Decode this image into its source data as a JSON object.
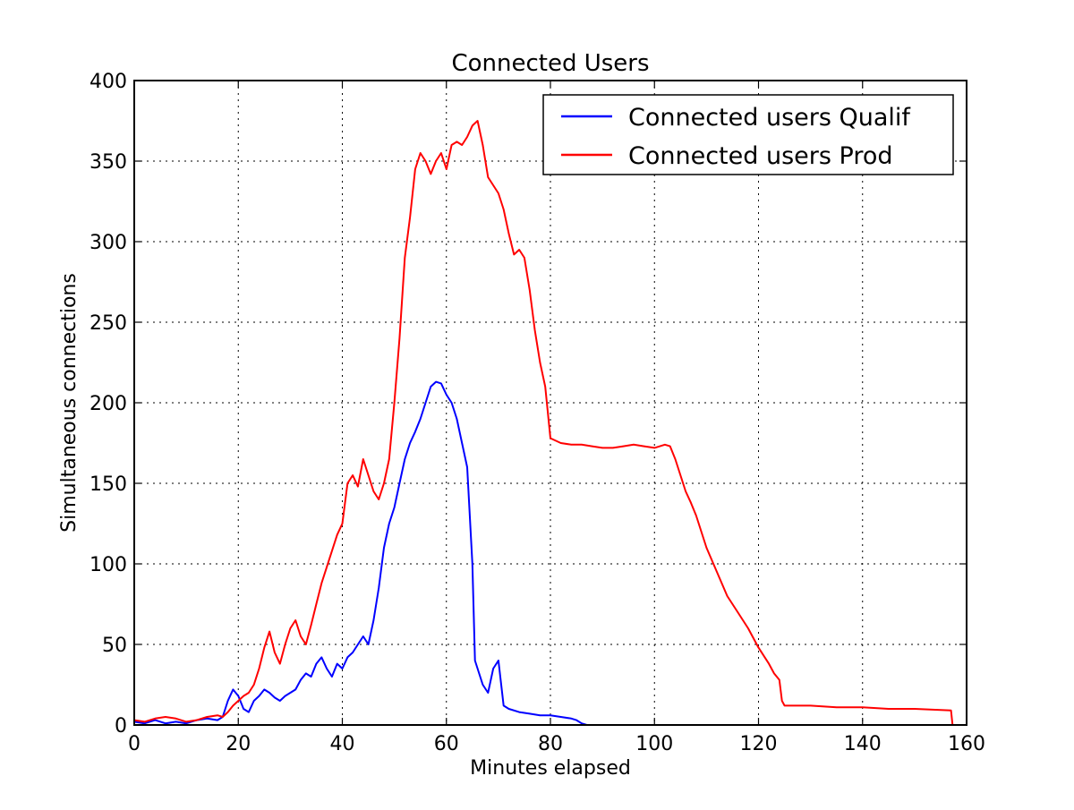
{
  "chart_data": {
    "type": "line",
    "title": "Connected Users",
    "xlabel": "Minutes elapsed",
    "ylabel": "Simultaneous connections",
    "xlim": [
      0,
      160
    ],
    "ylim": [
      0,
      400
    ],
    "xticks": [
      0,
      20,
      40,
      60,
      80,
      100,
      120,
      140,
      160
    ],
    "yticks": [
      0,
      50,
      100,
      150,
      200,
      250,
      300,
      350,
      400
    ],
    "grid": true,
    "legend_position": "top-right",
    "series": [
      {
        "name": "Connected users Qualif",
        "color": "#0000ff",
        "points": [
          [
            0,
            2
          ],
          [
            2,
            1
          ],
          [
            4,
            3
          ],
          [
            6,
            1
          ],
          [
            8,
            2
          ],
          [
            10,
            1
          ],
          [
            12,
            3
          ],
          [
            14,
            4
          ],
          [
            16,
            3
          ],
          [
            17,
            5
          ],
          [
            18,
            15
          ],
          [
            19,
            22
          ],
          [
            20,
            18
          ],
          [
            21,
            10
          ],
          [
            22,
            8
          ],
          [
            23,
            15
          ],
          [
            24,
            18
          ],
          [
            25,
            22
          ],
          [
            26,
            20
          ],
          [
            27,
            17
          ],
          [
            28,
            15
          ],
          [
            29,
            18
          ],
          [
            30,
            20
          ],
          [
            31,
            22
          ],
          [
            32,
            28
          ],
          [
            33,
            32
          ],
          [
            34,
            30
          ],
          [
            35,
            38
          ],
          [
            36,
            42
          ],
          [
            37,
            35
          ],
          [
            38,
            30
          ],
          [
            39,
            38
          ],
          [
            40,
            35
          ],
          [
            41,
            42
          ],
          [
            42,
            45
          ],
          [
            43,
            50
          ],
          [
            44,
            55
          ],
          [
            45,
            50
          ],
          [
            46,
            65
          ],
          [
            47,
            85
          ],
          [
            48,
            110
          ],
          [
            49,
            125
          ],
          [
            50,
            135
          ],
          [
            51,
            150
          ],
          [
            52,
            165
          ],
          [
            53,
            175
          ],
          [
            54,
            182
          ],
          [
            55,
            190
          ],
          [
            56,
            200
          ],
          [
            57,
            210
          ],
          [
            58,
            213
          ],
          [
            59,
            212
          ],
          [
            60,
            205
          ],
          [
            61,
            200
          ],
          [
            62,
            190
          ],
          [
            63,
            175
          ],
          [
            64,
            160
          ],
          [
            65,
            100
          ],
          [
            65.5,
            40
          ],
          [
            66,
            35
          ],
          [
            67,
            25
          ],
          [
            68,
            20
          ],
          [
            69,
            35
          ],
          [
            70,
            40
          ],
          [
            71,
            12
          ],
          [
            72,
            10
          ],
          [
            74,
            8
          ],
          [
            76,
            7
          ],
          [
            78,
            6
          ],
          [
            80,
            6
          ],
          [
            82,
            5
          ],
          [
            84,
            4
          ],
          [
            85,
            3
          ],
          [
            86,
            1
          ],
          [
            87,
            0
          ]
        ]
      },
      {
        "name": "Connected users Prod",
        "color": "#ff0000",
        "points": [
          [
            0,
            3
          ],
          [
            2,
            2
          ],
          [
            4,
            4
          ],
          [
            6,
            5
          ],
          [
            8,
            4
          ],
          [
            10,
            2
          ],
          [
            12,
            3
          ],
          [
            14,
            5
          ],
          [
            16,
            6
          ],
          [
            17,
            5
          ],
          [
            18,
            8
          ],
          [
            19,
            12
          ],
          [
            20,
            15
          ],
          [
            21,
            18
          ],
          [
            22,
            20
          ],
          [
            23,
            25
          ],
          [
            24,
            35
          ],
          [
            25,
            48
          ],
          [
            26,
            58
          ],
          [
            27,
            45
          ],
          [
            28,
            38
          ],
          [
            29,
            50
          ],
          [
            30,
            60
          ],
          [
            31,
            65
          ],
          [
            32,
            55
          ],
          [
            33,
            50
          ],
          [
            34,
            62
          ],
          [
            35,
            75
          ],
          [
            36,
            88
          ],
          [
            37,
            98
          ],
          [
            38,
            108
          ],
          [
            39,
            118
          ],
          [
            40,
            125
          ],
          [
            41,
            150
          ],
          [
            42,
            155
          ],
          [
            43,
            148
          ],
          [
            44,
            165
          ],
          [
            45,
            155
          ],
          [
            46,
            145
          ],
          [
            47,
            140
          ],
          [
            48,
            150
          ],
          [
            49,
            165
          ],
          [
            50,
            200
          ],
          [
            51,
            240
          ],
          [
            52,
            290
          ],
          [
            53,
            315
          ],
          [
            54,
            345
          ],
          [
            55,
            355
          ],
          [
            56,
            350
          ],
          [
            57,
            342
          ],
          [
            58,
            350
          ],
          [
            59,
            355
          ],
          [
            60,
            345
          ],
          [
            61,
            360
          ],
          [
            62,
            362
          ],
          [
            63,
            360
          ],
          [
            64,
            365
          ],
          [
            65,
            372
          ],
          [
            66,
            375
          ],
          [
            67,
            360
          ],
          [
            68,
            340
          ],
          [
            69,
            335
          ],
          [
            70,
            330
          ],
          [
            71,
            320
          ],
          [
            72,
            305
          ],
          [
            73,
            292
          ],
          [
            74,
            295
          ],
          [
            75,
            290
          ],
          [
            76,
            270
          ],
          [
            77,
            245
          ],
          [
            78,
            225
          ],
          [
            79,
            210
          ],
          [
            80,
            178
          ],
          [
            82,
            175
          ],
          [
            84,
            174
          ],
          [
            86,
            174
          ],
          [
            88,
            173
          ],
          [
            90,
            172
          ],
          [
            92,
            172
          ],
          [
            94,
            173
          ],
          [
            96,
            174
          ],
          [
            98,
            173
          ],
          [
            100,
            172
          ],
          [
            102,
            174
          ],
          [
            103,
            173
          ],
          [
            104,
            165
          ],
          [
            105,
            155
          ],
          [
            106,
            145
          ],
          [
            107,
            138
          ],
          [
            108,
            130
          ],
          [
            110,
            110
          ],
          [
            112,
            95
          ],
          [
            114,
            80
          ],
          [
            116,
            70
          ],
          [
            118,
            60
          ],
          [
            120,
            48
          ],
          [
            122,
            38
          ],
          [
            123,
            32
          ],
          [
            124,
            28
          ],
          [
            124.5,
            15
          ],
          [
            125,
            12
          ],
          [
            126,
            12
          ],
          [
            130,
            12
          ],
          [
            135,
            11
          ],
          [
            140,
            11
          ],
          [
            145,
            10
          ],
          [
            150,
            10
          ],
          [
            157,
            9
          ],
          [
            157.3,
            0
          ]
        ]
      }
    ]
  }
}
